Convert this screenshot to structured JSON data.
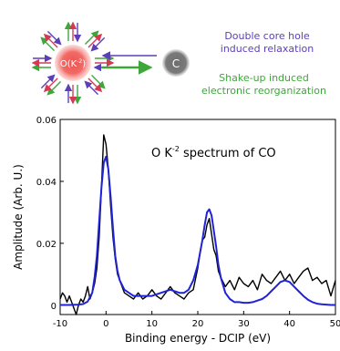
{
  "schematic": {
    "core_label": "O(K",
    "core_sup": "-2",
    "core_tail": ")",
    "partner_label": "C",
    "legend_relax_line1": "Double core hole",
    "legend_relax_line2": "induced relaxation",
    "legend_shake_line1": "Shake-up induced",
    "legend_shake_line2": "electronic reorganization",
    "colors": {
      "relax": "#5b3fb8",
      "shake": "#3fa63a",
      "repulsion": "#d43a55",
      "core": "#f0524f",
      "partner": "#6e6e6e"
    }
  },
  "chart_data": {
    "type": "line",
    "title_main": "O K",
    "title_sup": "-2",
    "title_tail": " spectrum of  CO",
    "xlabel": "Binding energy - DCIP (eV)",
    "ylabel": "Amplitude (Arb. U.)",
    "xlim": [
      -10,
      50
    ],
    "ylim": [
      -0.003,
      0.06
    ],
    "xticks": [
      -10,
      0,
      10,
      20,
      30,
      40,
      50
    ],
    "yticks": [
      0,
      0.02,
      0.04,
      0.06
    ],
    "ytick_labels": [
      "0",
      "0.02",
      "0.04",
      "0.06"
    ],
    "series": [
      {
        "color": "#000000",
        "x": [
          -10,
          -9.5,
          -9,
          -8.5,
          -8,
          -7.5,
          -7,
          -6.5,
          -6,
          -5.5,
          -5,
          -4.5,
          -4,
          -3.5,
          -3,
          -2.5,
          -2,
          -1.5,
          -1,
          -0.5,
          0,
          0.5,
          1,
          1.5,
          2,
          2.5,
          3,
          3.5,
          4,
          5,
          6,
          7,
          8,
          9,
          10,
          11,
          12,
          13,
          14,
          15,
          16,
          17,
          18,
          19,
          20,
          20.5,
          21,
          21.5,
          22,
          22.5,
          23,
          23.5,
          24,
          24.5,
          25,
          26,
          27,
          28,
          29,
          30,
          31,
          32,
          33,
          34,
          35,
          36,
          37,
          38,
          39,
          40,
          41,
          42,
          43,
          44,
          45,
          46,
          47,
          48,
          49,
          50
        ],
        "y": [
          0.002,
          0.004,
          0.003,
          0.001,
          0.003,
          0.001,
          -0.001,
          -0.003,
          0.0,
          0.002,
          0.001,
          0.003,
          0.006,
          0.002,
          0.004,
          0.007,
          0.012,
          0.022,
          0.038,
          0.055,
          0.052,
          0.044,
          0.032,
          0.022,
          0.015,
          0.01,
          0.008,
          0.006,
          0.004,
          0.003,
          0.002,
          0.004,
          0.002,
          0.003,
          0.005,
          0.003,
          0.002,
          0.004,
          0.006,
          0.004,
          0.003,
          0.002,
          0.004,
          0.005,
          0.012,
          0.017,
          0.021,
          0.022,
          0.026,
          0.028,
          0.023,
          0.018,
          0.016,
          0.011,
          0.009,
          0.006,
          0.008,
          0.005,
          0.009,
          0.007,
          0.006,
          0.008,
          0.005,
          0.01,
          0.008,
          0.007,
          0.009,
          0.011,
          0.008,
          0.01,
          0.007,
          0.009,
          0.011,
          0.012,
          0.008,
          0.009,
          0.007,
          0.008,
          0.003,
          0.008
        ]
      },
      {
        "color": "#1f22d6",
        "x": [
          -10,
          -8,
          -6,
          -5,
          -4,
          -3,
          -2.5,
          -2,
          -1.5,
          -1,
          -0.5,
          0,
          0.5,
          1,
          1.5,
          2,
          2.5,
          3,
          4,
          5,
          6,
          8,
          10,
          12,
          14,
          16,
          17,
          18,
          19,
          20,
          20.5,
          21,
          21.5,
          22,
          22.5,
          23,
          23.5,
          24,
          24.5,
          25,
          26,
          27,
          28,
          29,
          30,
          31,
          32,
          33,
          34,
          35,
          36,
          37,
          38,
          39,
          40,
          41,
          42,
          43,
          44,
          45,
          46,
          47,
          48,
          49,
          50
        ],
        "y": [
          0.0001,
          0.0001,
          0.0002,
          0.0004,
          0.0012,
          0.004,
          0.009,
          0.016,
          0.027,
          0.038,
          0.046,
          0.048,
          0.044,
          0.035,
          0.025,
          0.016,
          0.011,
          0.008,
          0.005,
          0.004,
          0.003,
          0.003,
          0.003,
          0.004,
          0.005,
          0.004,
          0.004,
          0.005,
          0.008,
          0.013,
          0.017,
          0.021,
          0.026,
          0.03,
          0.031,
          0.029,
          0.024,
          0.019,
          0.013,
          0.009,
          0.004,
          0.002,
          0.001,
          0.001,
          0.0008,
          0.0008,
          0.001,
          0.0015,
          0.002,
          0.003,
          0.0045,
          0.006,
          0.0075,
          0.008,
          0.0075,
          0.006,
          0.0045,
          0.003,
          0.0018,
          0.001,
          0.0005,
          0.0003,
          0.0002,
          0.0001,
          0.0001
        ]
      }
    ]
  }
}
